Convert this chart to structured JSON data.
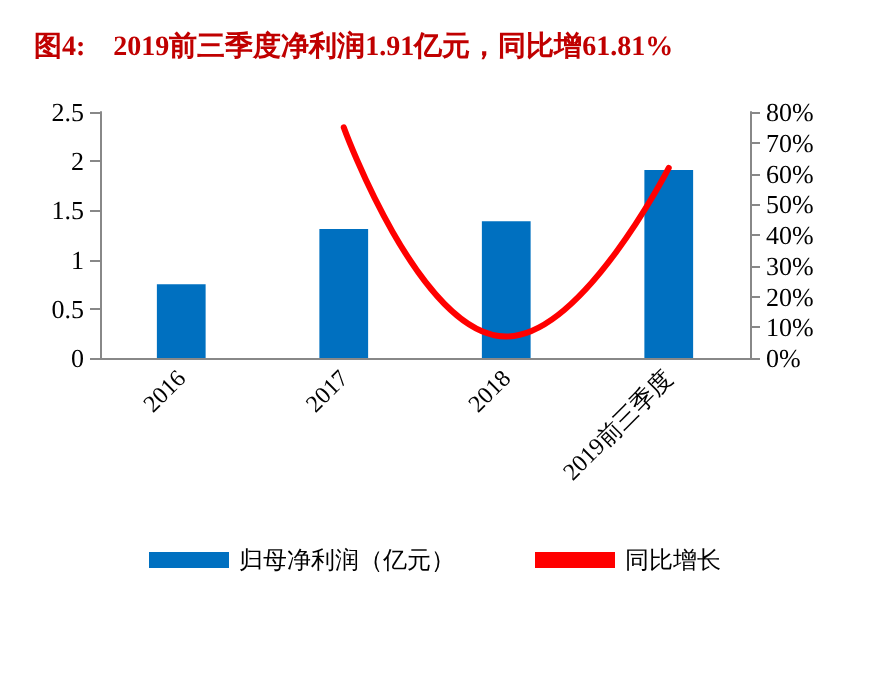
{
  "chart_data": {
    "type": "bar",
    "title": "图4:    2019前三季度净利润1.91亿元，同比增61.81%",
    "categories": [
      "2016",
      "2017",
      "2018",
      "2019前三季度"
    ],
    "series": [
      {
        "name": "归母净利润（亿元）",
        "color": "#0070c0",
        "values": [
          0.75,
          1.31,
          1.39,
          1.91
        ]
      },
      {
        "name": "同比增长",
        "type": "line",
        "axis": "y2",
        "color": "#ff0000",
        "values": [
          null,
          75,
          7,
          61.81
        ]
      }
    ],
    "ylim": [
      0,
      2.5
    ],
    "yticks": [
      0,
      0.5,
      1,
      1.5,
      2,
      2.5
    ],
    "y2lim": [
      0,
      80
    ],
    "y2ticks": [
      {
        "value": 0,
        "label": "0%"
      },
      {
        "value": 10,
        "label": "10%"
      },
      {
        "value": 20,
        "label": "20%"
      },
      {
        "value": 30,
        "label": "30%"
      },
      {
        "value": 40,
        "label": "40%"
      },
      {
        "value": 50,
        "label": "50%"
      },
      {
        "value": 60,
        "label": "60%"
      },
      {
        "value": 70,
        "label": "70%"
      },
      {
        "value": 80,
        "label": "80%"
      }
    ],
    "legend": "bottom",
    "grid": false,
    "marker": "none",
    "line_style": "solid"
  }
}
